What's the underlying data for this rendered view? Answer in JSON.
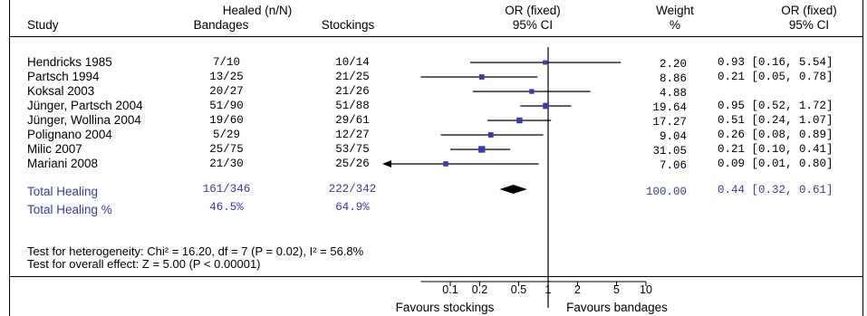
{
  "header": {
    "study": "Study",
    "healed_group": "Healed (n/N)",
    "bandages": "Bandages",
    "stockings": "Stockings",
    "or_fixed_1": "OR (fixed)",
    "ci_1": "95% CI",
    "weight": "Weight",
    "percent": "%",
    "or_fixed_2": "OR (fixed)",
    "ci_2": "95% CI"
  },
  "studies": [
    {
      "name": "Hendricks 1985",
      "bandages": "7/10",
      "stockings": "10/14",
      "weight": "2.20",
      "or_text": "0.93 [0.16, 5.54]"
    },
    {
      "name": "Partsch 1994",
      "bandages": "13/25",
      "stockings": "21/25",
      "weight": "8.86",
      "or_text": "0.21 [0.05, 0.78]"
    },
    {
      "name": "Koksal 2003",
      "bandages": "20/27",
      "stockings": "21/26",
      "weight": "4.88",
      "or_text": ""
    },
    {
      "name": "Jünger, Partsch 2004",
      "bandages": "51/90",
      "stockings": "51/88",
      "weight": "19.64",
      "or_text": "0.95 [0.52, 1.72]"
    },
    {
      "name": "Jünger, Wollina 2004",
      "bandages": "19/60",
      "stockings": "29/61",
      "weight": "17.27",
      "or_text": "0.51 [0.24, 1.07]"
    },
    {
      "name": "Polignano 2004",
      "bandages": "5/29",
      "stockings": "12/27",
      "weight": "9.04",
      "or_text": "0.26 [0.08, 0.89]"
    },
    {
      "name": "Milic 2007",
      "bandages": "25/75",
      "stockings": "53/75",
      "weight": "31.05",
      "or_text": "0.21 [0.10, 0.41]"
    },
    {
      "name": "Mariani 2008",
      "bandages": "21/30",
      "stockings": "25/26",
      "weight": "7.06",
      "or_text": "0.09 [0.01, 0.80]"
    }
  ],
  "total": {
    "label": "Total Healing",
    "bandages": "161/346",
    "stockings": "222/342",
    "weight": "100.00",
    "or_text": "0.44 [0.32, 0.61]"
  },
  "total_pct": {
    "label": "Total Healing %",
    "bandages": "46.5%",
    "stockings": "64.9%"
  },
  "footer": {
    "heterogeneity": "Test for heterogeneity: Chi² = 16.20, df = 7 (P = 0.02), I² = 56.8%",
    "overall": "Test for overall effect: Z = 5.00 (P < 0.00001)"
  },
  "axis": {
    "favours_left": "Favours stockings",
    "favours_right": "Favours bandages"
  },
  "colors": {
    "marker": "#3a3aa8",
    "summary_text": "#3a3aa8",
    "line": "#000000"
  },
  "chart_data": {
    "type": "scatter",
    "scale": "log",
    "xlim": [
      0.01,
      10
    ],
    "ticks": [
      "0.1",
      "0.2",
      "0.5",
      "1",
      "2",
      "5",
      "10"
    ],
    "reference_line": 1,
    "studies": [
      {
        "name": "Hendricks 1985",
        "or": 0.93,
        "lo": 0.16,
        "hi": 5.54,
        "weight": 2.2
      },
      {
        "name": "Partsch 1994",
        "or": 0.21,
        "lo": 0.05,
        "hi": 0.78,
        "weight": 8.86
      },
      {
        "name": "Koksal 2003",
        "or": 0.68,
        "lo": 0.17,
        "hi": 2.7,
        "weight": 4.88
      },
      {
        "name": "Jünger, Partsch 2004",
        "or": 0.95,
        "lo": 0.52,
        "hi": 1.72,
        "weight": 19.64
      },
      {
        "name": "Jünger, Wollina 2004",
        "or": 0.51,
        "lo": 0.24,
        "hi": 1.07,
        "weight": 17.27
      },
      {
        "name": "Polignano 2004",
        "or": 0.26,
        "lo": 0.08,
        "hi": 0.89,
        "weight": 9.04
      },
      {
        "name": "Milic 2007",
        "or": 0.21,
        "lo": 0.1,
        "hi": 0.41,
        "weight": 31.05
      },
      {
        "name": "Mariani 2008",
        "or": 0.09,
        "lo": 0.01,
        "hi": 0.8,
        "weight": 7.06,
        "left_arrow": true
      }
    ],
    "summary": {
      "or": 0.44,
      "lo": 0.32,
      "hi": 0.61
    }
  }
}
